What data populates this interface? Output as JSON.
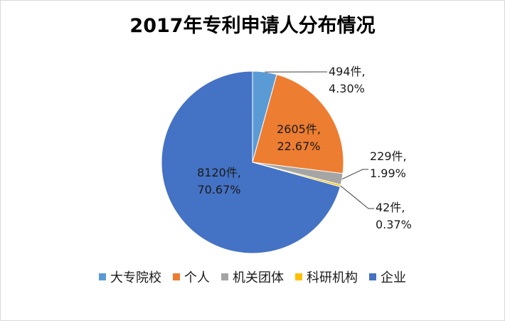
{
  "chart_data": {
    "type": "pie",
    "title": "2017年专利申请人分布情况",
    "categories": [
      "大专院校",
      "个人",
      "机关团体",
      "科研机构",
      "企业"
    ],
    "values": [
      494,
      2605,
      229,
      42,
      8120
    ],
    "percentages": [
      "4.30%",
      "22.67%",
      "1.99%",
      "0.37%",
      "70.67%"
    ],
    "value_labels": [
      "494件,",
      "2605件,",
      "229件,",
      "42件,",
      "8120件,"
    ],
    "colors": [
      "#5b9bd5",
      "#ed7d31",
      "#a5a5a5",
      "#ffc000",
      "#4472c4"
    ],
    "legend_position": "bottom",
    "start_angle": "12 o'clock",
    "direction": "clockwise"
  }
}
